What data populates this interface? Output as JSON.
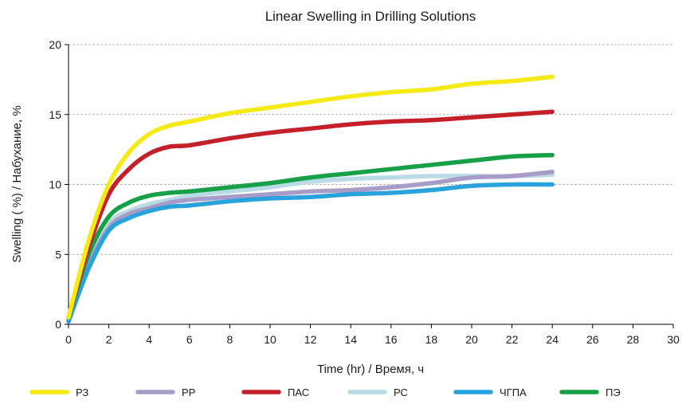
{
  "chart_data": {
    "type": "line",
    "title": "Linear Swelling in Drilling Solutions",
    "xlabel": "Time  (hr)  / Время, ч",
    "ylabel": "Swelling ( %) / Набухание, %",
    "xlim": [
      0,
      30
    ],
    "ylim": [
      0,
      20
    ],
    "xticks": [
      "0",
      "2",
      "4",
      "6",
      "8",
      "10",
      "12",
      "14",
      "16",
      "18",
      "20",
      "22",
      "24",
      "26",
      "28",
      "30"
    ],
    "yticks": [
      "0",
      "5",
      "10",
      "15",
      "20"
    ],
    "grid": "horizontal-dashed",
    "legend": "bottom",
    "series": [
      {
        "name": "РЗ",
        "color": "#f5ea14",
        "x": [
          0,
          1,
          2,
          3,
          4,
          5,
          6,
          8,
          10,
          12,
          14,
          16,
          18,
          20,
          22,
          24
        ],
        "y": [
          0.5,
          6.0,
          10.0,
          12.3,
          13.6,
          14.2,
          14.5,
          15.1,
          15.5,
          15.9,
          16.3,
          16.6,
          16.8,
          17.2,
          17.4,
          17.7
        ]
      },
      {
        "name": "РР",
        "color": "#a89cc8",
        "x": [
          0,
          1,
          2,
          3,
          4,
          5,
          6,
          8,
          10,
          12,
          14,
          16,
          18,
          20,
          22,
          24
        ],
        "y": [
          0.3,
          4.2,
          6.9,
          7.9,
          8.3,
          8.7,
          8.9,
          9.1,
          9.3,
          9.5,
          9.6,
          9.8,
          10.1,
          10.5,
          10.6,
          10.9
        ]
      },
      {
        "name": "ПАС",
        "color": "#c4202a",
        "x": [
          0,
          1,
          2,
          3,
          4,
          5,
          6,
          8,
          10,
          12,
          14,
          16,
          18,
          20,
          22,
          24
        ],
        "y": [
          0.5,
          5.5,
          9.3,
          11.1,
          12.2,
          12.7,
          12.8,
          13.3,
          13.7,
          14.0,
          14.3,
          14.5,
          14.6,
          14.8,
          15.0,
          15.2
        ]
      },
      {
        "name": "РС",
        "color": "#b8dbe6",
        "x": [
          0,
          1,
          2,
          3,
          4,
          5,
          6,
          8,
          10,
          12,
          14,
          16,
          18,
          20,
          22,
          24
        ],
        "y": [
          0.3,
          4.4,
          7.2,
          8.1,
          8.6,
          8.9,
          9.2,
          9.5,
          9.8,
          10.2,
          10.4,
          10.5,
          10.6,
          10.6,
          10.6,
          10.7
        ]
      },
      {
        "name": "ЧГПА",
        "color": "#2aa3dc",
        "x": [
          0,
          1,
          2,
          3,
          4,
          5,
          6,
          8,
          10,
          12,
          14,
          16,
          18,
          20,
          22,
          24
        ],
        "y": [
          0.2,
          4.0,
          6.7,
          7.6,
          8.1,
          8.4,
          8.5,
          8.8,
          9.0,
          9.1,
          9.3,
          9.4,
          9.6,
          9.9,
          10.0,
          10.0
        ]
      },
      {
        "name": "ПЭ",
        "color": "#17a048",
        "x": [
          0,
          1,
          2,
          3,
          4,
          5,
          6,
          8,
          10,
          12,
          14,
          16,
          18,
          20,
          22,
          24
        ],
        "y": [
          0.5,
          5.0,
          7.7,
          8.7,
          9.2,
          9.4,
          9.5,
          9.8,
          10.1,
          10.5,
          10.8,
          11.1,
          11.4,
          11.7,
          12.0,
          12.1
        ]
      }
    ]
  }
}
